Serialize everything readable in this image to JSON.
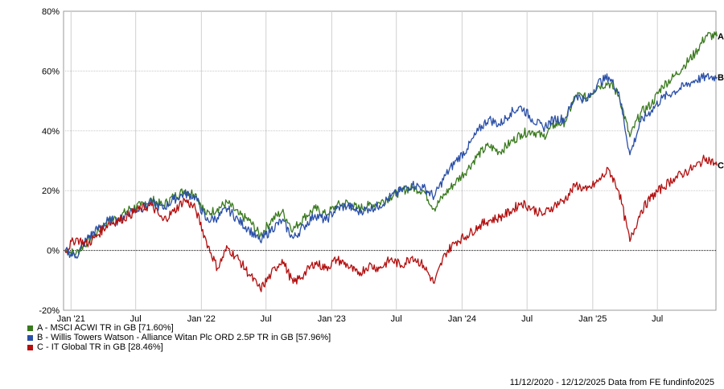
{
  "chart_data": {
    "type": "line",
    "ylim": [
      -20,
      80
    ],
    "yticks": [
      "80%",
      "60%",
      "40%",
      "20%",
      "0%",
      "-20%"
    ],
    "ytick_values": [
      80,
      60,
      40,
      20,
      0,
      -20
    ],
    "xticks": [
      {
        "label": "Jan '21",
        "x": "2021-01"
      },
      {
        "label": "Jul",
        "x": "2021-07"
      },
      {
        "label": "Jan '22",
        "x": "2022-01"
      },
      {
        "label": "Jul",
        "x": "2022-07"
      },
      {
        "label": "Jan '23",
        "x": "2023-01"
      },
      {
        "label": "Jul",
        "x": "2023-07"
      },
      {
        "label": "Jan '24",
        "x": "2024-01"
      },
      {
        "label": "Jul",
        "x": "2024-07"
      },
      {
        "label": "Jan '25",
        "x": "2025-01"
      },
      {
        "label": "Jul",
        "x": "2025-07"
      }
    ],
    "x_range": [
      "2020-12-11",
      "2025-12-12"
    ],
    "grid": true,
    "series": [
      {
        "name": "A - MSCI ACWI TR in GB [71.60%]",
        "end_label": "A",
        "color": "#3a7a1e",
        "points": [
          [
            "2020-12",
            0
          ],
          [
            "2021-01",
            -1
          ],
          [
            "2021-02",
            3
          ],
          [
            "2021-03",
            6
          ],
          [
            "2021-04",
            10
          ],
          [
            "2021-05",
            11
          ],
          [
            "2021-06",
            14
          ],
          [
            "2021-07",
            15
          ],
          [
            "2021-08",
            17
          ],
          [
            "2021-09",
            15
          ],
          [
            "2021-10",
            18
          ],
          [
            "2021-11",
            20
          ],
          [
            "2021-12",
            19
          ],
          [
            "2022-01",
            12
          ],
          [
            "2022-02",
            14
          ],
          [
            "2022-03",
            16
          ],
          [
            "2022-04",
            12
          ],
          [
            "2022-05",
            10
          ],
          [
            "2022-06",
            5
          ],
          [
            "2022-07",
            10
          ],
          [
            "2022-08",
            13
          ],
          [
            "2022-09",
            7
          ],
          [
            "2022-10",
            11
          ],
          [
            "2022-11",
            14
          ],
          [
            "2022-12",
            12
          ],
          [
            "2023-01",
            15
          ],
          [
            "2023-02",
            16
          ],
          [
            "2023-03",
            14
          ],
          [
            "2023-04",
            15
          ],
          [
            "2023-05",
            16
          ],
          [
            "2023-06",
            18
          ],
          [
            "2023-07",
            20
          ],
          [
            "2023-08",
            21
          ],
          [
            "2023-09",
            20
          ],
          [
            "2023-10",
            14
          ],
          [
            "2023-11",
            19
          ],
          [
            "2023-12",
            23
          ],
          [
            "2024-01",
            27
          ],
          [
            "2024-02",
            32
          ],
          [
            "2024-03",
            35
          ],
          [
            "2024-04",
            33
          ],
          [
            "2024-05",
            36
          ],
          [
            "2024-06",
            39
          ],
          [
            "2024-07",
            40
          ],
          [
            "2024-08",
            38
          ],
          [
            "2024-09",
            42
          ],
          [
            "2024-10",
            43
          ],
          [
            "2024-11",
            52
          ],
          [
            "2024-12",
            51
          ],
          [
            "2025-01",
            55
          ],
          [
            "2025-02",
            56
          ],
          [
            "2025-03",
            52
          ],
          [
            "2025-04",
            38
          ],
          [
            "2025-05",
            46
          ],
          [
            "2025-06",
            49
          ],
          [
            "2025-07",
            55
          ],
          [
            "2025-08",
            58
          ],
          [
            "2025-09",
            62
          ],
          [
            "2025-10",
            66
          ],
          [
            "2025-11",
            72
          ],
          [
            "2025-12",
            71.6
          ]
        ]
      },
      {
        "name": "B - Willis Towers Watson - Alliance Witan Plc ORD 2.5P TR in GB [57.96%]",
        "end_label": "B",
        "color": "#2a4fa8",
        "points": [
          [
            "2020-12",
            0
          ],
          [
            "2021-01",
            -2
          ],
          [
            "2021-02",
            4
          ],
          [
            "2021-03",
            7
          ],
          [
            "2021-04",
            10
          ],
          [
            "2021-05",
            10
          ],
          [
            "2021-06",
            13
          ],
          [
            "2021-07",
            14
          ],
          [
            "2021-08",
            16
          ],
          [
            "2021-09",
            14
          ],
          [
            "2021-10",
            17
          ],
          [
            "2021-11",
            19
          ],
          [
            "2021-12",
            18
          ],
          [
            "2022-01",
            10
          ],
          [
            "2022-02",
            11
          ],
          [
            "2022-03",
            14
          ],
          [
            "2022-04",
            10
          ],
          [
            "2022-05",
            7
          ],
          [
            "2022-06",
            3
          ],
          [
            "2022-07",
            7
          ],
          [
            "2022-08",
            10
          ],
          [
            "2022-09",
            4
          ],
          [
            "2022-10",
            8
          ],
          [
            "2022-11",
            12
          ],
          [
            "2022-12",
            10
          ],
          [
            "2023-01",
            14
          ],
          [
            "2023-02",
            15
          ],
          [
            "2023-03",
            13
          ],
          [
            "2023-04",
            14
          ],
          [
            "2023-05",
            15
          ],
          [
            "2023-06",
            18
          ],
          [
            "2023-07",
            20
          ],
          [
            "2023-08",
            22
          ],
          [
            "2023-09",
            21
          ],
          [
            "2023-10",
            18
          ],
          [
            "2023-11",
            25
          ],
          [
            "2023-12",
            30
          ],
          [
            "2024-01",
            34
          ],
          [
            "2024-02",
            40
          ],
          [
            "2024-03",
            44
          ],
          [
            "2024-04",
            42
          ],
          [
            "2024-05",
            46
          ],
          [
            "2024-06",
            48
          ],
          [
            "2024-07",
            44
          ],
          [
            "2024-08",
            41
          ],
          [
            "2024-09",
            44
          ],
          [
            "2024-10",
            44
          ],
          [
            "2024-11",
            52
          ],
          [
            "2024-12",
            50
          ],
          [
            "2025-01",
            56
          ],
          [
            "2025-02",
            58
          ],
          [
            "2025-03",
            53
          ],
          [
            "2025-04",
            32
          ],
          [
            "2025-05",
            43
          ],
          [
            "2025-06",
            47
          ],
          [
            "2025-07",
            51
          ],
          [
            "2025-08",
            53
          ],
          [
            "2025-09",
            55
          ],
          [
            "2025-10",
            57
          ],
          [
            "2025-11",
            58
          ],
          [
            "2025-12",
            57.96
          ]
        ]
      },
      {
        "name": "C - IT Global TR in GB [28.46%]",
        "end_label": "C",
        "color": "#b30f0f",
        "points": [
          [
            "2020-12",
            0
          ],
          [
            "2021-01",
            4
          ],
          [
            "2021-02",
            2
          ],
          [
            "2021-03",
            5
          ],
          [
            "2021-04",
            9
          ],
          [
            "2021-05",
            10
          ],
          [
            "2021-06",
            12
          ],
          [
            "2021-07",
            14
          ],
          [
            "2021-08",
            15
          ],
          [
            "2021-09",
            10
          ],
          [
            "2021-10",
            13
          ],
          [
            "2021-11",
            17
          ],
          [
            "2021-12",
            14
          ],
          [
            "2022-01",
            3
          ],
          [
            "2022-02",
            -6
          ],
          [
            "2022-03",
            1
          ],
          [
            "2022-04",
            -3
          ],
          [
            "2022-05",
            -8
          ],
          [
            "2022-06",
            -13
          ],
          [
            "2022-07",
            -8
          ],
          [
            "2022-08",
            -3
          ],
          [
            "2022-09",
            -11
          ],
          [
            "2022-10",
            -8
          ],
          [
            "2022-11",
            -4
          ],
          [
            "2022-12",
            -6
          ],
          [
            "2023-01",
            -3
          ],
          [
            "2023-02",
            -5
          ],
          [
            "2023-03",
            -8
          ],
          [
            "2023-04",
            -5
          ],
          [
            "2023-05",
            -6
          ],
          [
            "2023-06",
            -3
          ],
          [
            "2023-07",
            -5
          ],
          [
            "2023-08",
            -2
          ],
          [
            "2023-09",
            -5
          ],
          [
            "2023-10",
            -11
          ],
          [
            "2023-11",
            -1
          ],
          [
            "2023-12",
            3
          ],
          [
            "2024-01",
            5
          ],
          [
            "2024-02",
            8
          ],
          [
            "2024-03",
            10
          ],
          [
            "2024-04",
            11
          ],
          [
            "2024-05",
            13
          ],
          [
            "2024-06",
            16
          ],
          [
            "2024-07",
            14
          ],
          [
            "2024-08",
            12
          ],
          [
            "2024-09",
            15
          ],
          [
            "2024-10",
            17
          ],
          [
            "2024-11",
            22
          ],
          [
            "2024-12",
            20
          ],
          [
            "2025-01",
            23
          ],
          [
            "2025-02",
            27
          ],
          [
            "2025-03",
            20
          ],
          [
            "2025-04",
            3
          ],
          [
            "2025-05",
            13
          ],
          [
            "2025-06",
            18
          ],
          [
            "2025-07",
            21
          ],
          [
            "2025-08",
            24
          ],
          [
            "2025-09",
            26
          ],
          [
            "2025-10",
            28
          ],
          [
            "2025-11",
            31
          ],
          [
            "2025-12",
            28.46
          ]
        ]
      }
    ]
  },
  "legend": [
    {
      "label": "A - MSCI ACWI TR in GB [71.60%]",
      "color": "#3a7a1e"
    },
    {
      "label": "B - Willis Towers Watson - Alliance Witan Plc ORD 2.5P TR in GB [57.96%]",
      "color": "#2a4fa8"
    },
    {
      "label": "C - IT Global TR in GB [28.46%]",
      "color": "#b30f0f"
    }
  ],
  "footer": "11/12/2020 - 12/12/2025 Data from FE fundinfo2025"
}
